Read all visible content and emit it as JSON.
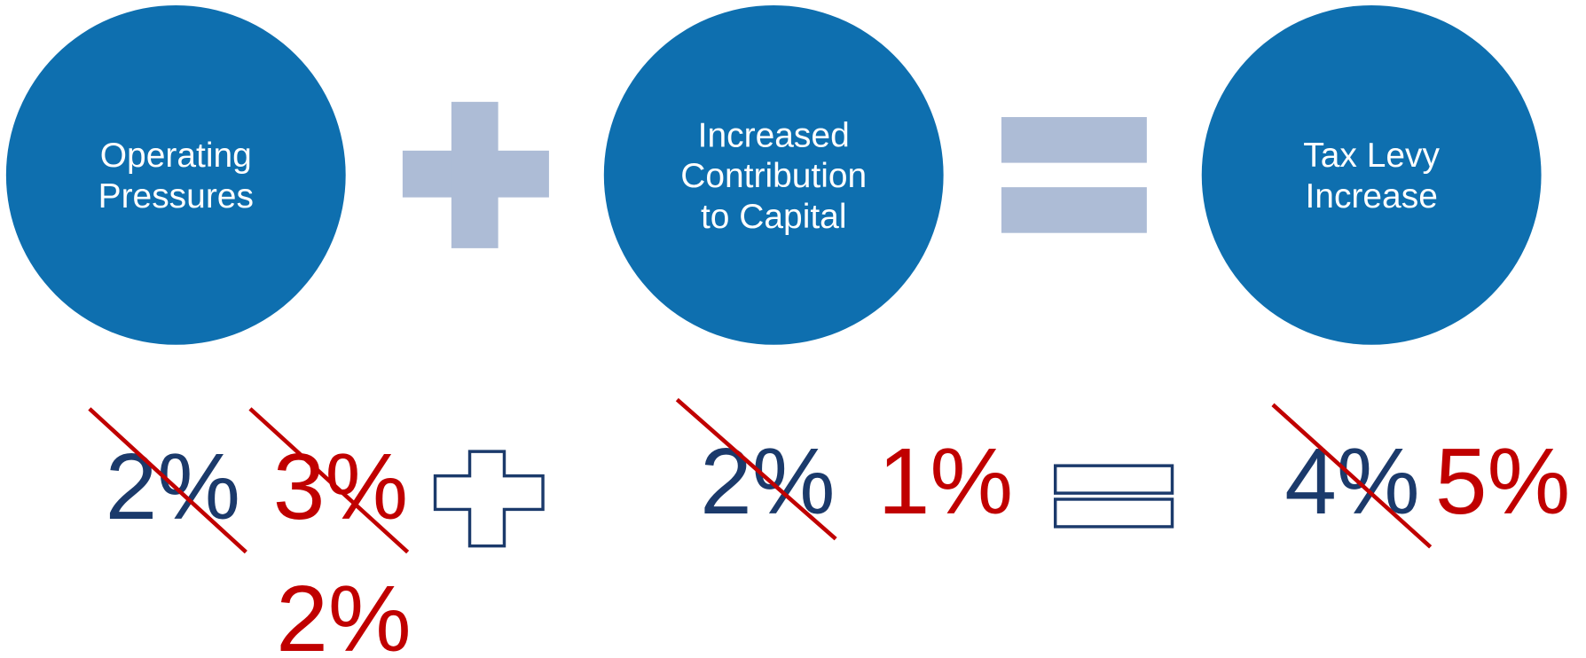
{
  "nodes": [
    {
      "lines": [
        "Operating",
        "Pressures"
      ]
    },
    {
      "lines": [
        "Increased",
        "Contribution",
        "to Capital"
      ]
    },
    {
      "lines": [
        "Tax Levy",
        "Increase"
      ]
    }
  ],
  "results": [
    {
      "items": [
        {
          "text": "2%",
          "color": "#1b3a6b",
          "struck": true
        },
        {
          "text": "3%",
          "color": "#c00000",
          "struck": true
        },
        {
          "text": "2%",
          "color": "#c00000",
          "struck": false
        }
      ]
    },
    {
      "items": [
        {
          "text": "2%",
          "color": "#1b3a6b",
          "struck": true
        },
        {
          "text": "1%",
          "color": "#c00000",
          "struck": false
        }
      ]
    },
    {
      "items": [
        {
          "text": "4%",
          "color": "#1b3a6b",
          "struck": true
        },
        {
          "text": "5%",
          "color": "#c00000",
          "struck": false
        }
      ]
    }
  ]
}
